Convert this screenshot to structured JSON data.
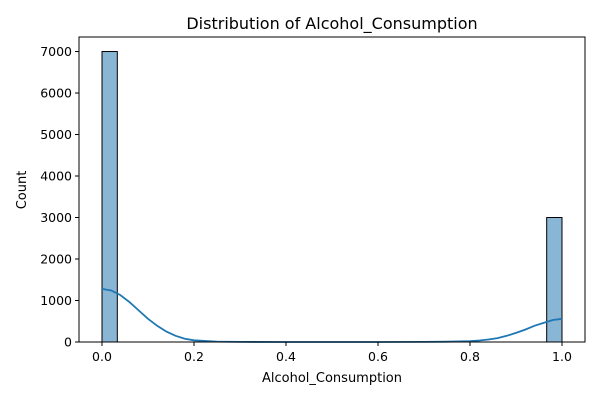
{
  "chart_data": {
    "type": "bar",
    "title": "Distribution of Alcohol_Consumption",
    "xlabel": "Alcohol_Consumption",
    "ylabel": "Count",
    "xlim": [
      -0.05,
      1.05
    ],
    "ylim": [
      0,
      7350
    ],
    "xticks": [
      0.0,
      0.2,
      0.4,
      0.6,
      0.8,
      1.0
    ],
    "xtick_labels": [
      "0.0",
      "0.2",
      "0.4",
      "0.6",
      "0.8",
      "1.0"
    ],
    "yticks": [
      0,
      1000,
      2000,
      3000,
      4000,
      5000,
      6000,
      7000
    ],
    "ytick_labels": [
      "0",
      "1000",
      "2000",
      "3000",
      "4000",
      "5000",
      "6000",
      "7000"
    ],
    "bins": [
      {
        "x0": 0.0,
        "x1": 0.0333,
        "count": 7000
      },
      {
        "x0": 0.9667,
        "x1": 1.0,
        "count": 3000
      }
    ],
    "kde": {
      "x": [
        0.0,
        0.02,
        0.04,
        0.06,
        0.08,
        0.1,
        0.12,
        0.14,
        0.16,
        0.18,
        0.2,
        0.25,
        0.3,
        0.4,
        0.5,
        0.6,
        0.7,
        0.75,
        0.8,
        0.82,
        0.84,
        0.86,
        0.88,
        0.9,
        0.92,
        0.94,
        0.96,
        0.98,
        1.0
      ],
      "y": [
        1280,
        1240,
        1130,
        960,
        760,
        560,
        390,
        250,
        150,
        80,
        40,
        10,
        3,
        0,
        0,
        0,
        3,
        8,
        20,
        35,
        60,
        95,
        150,
        220,
        300,
        390,
        460,
        530,
        560
      ]
    },
    "colors": {
      "bar_fill": "#8ab6d6",
      "bar_edge": "#000000",
      "kde_line": "#1f77b4",
      "axis": "#000000"
    },
    "grid": false,
    "legend": "none"
  }
}
